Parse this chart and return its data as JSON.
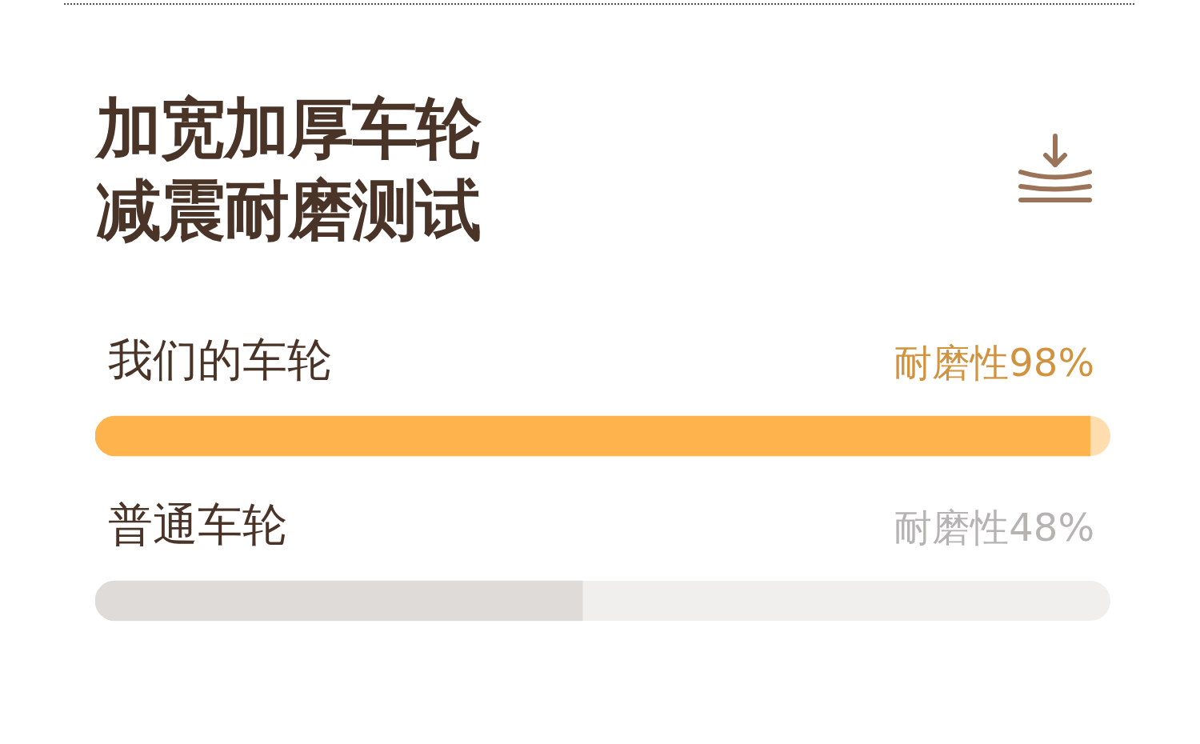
{
  "chart_data": {
    "type": "bar",
    "orientation": "horizontal",
    "title": "加宽加厚车轮减震耐磨测试",
    "categories": [
      "我们的车轮",
      "普通车轮"
    ],
    "values": [
      98,
      48
    ],
    "colors": [
      "#ffb34d",
      "#dedbd9"
    ],
    "value_labels": [
      "耐磨性98%",
      "耐磨性48%"
    ],
    "xlim": [
      0,
      100
    ],
    "tick_labels": "y"
  }
}
